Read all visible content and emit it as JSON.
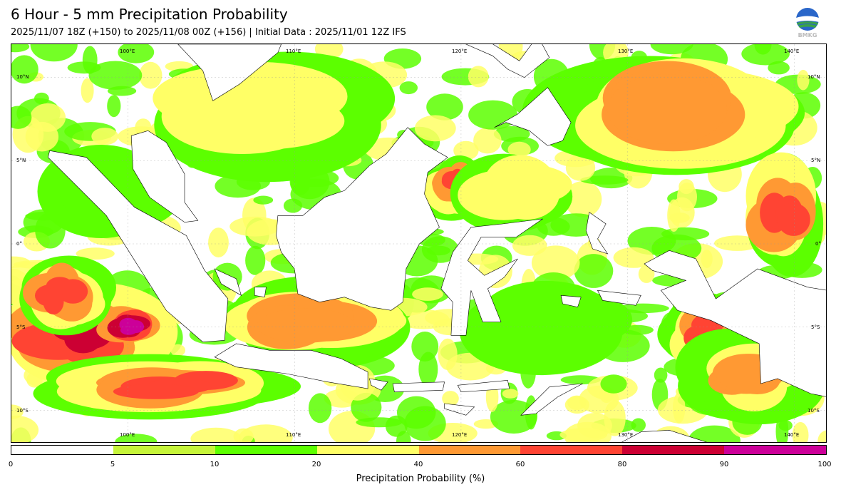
{
  "title": "6 Hour - 5 mm Precipitation Probability",
  "subtitle": "2025/11/07 18Z (+150) to 2025/11/08 00Z (+156) | Initial Data : 2025/11/01 12Z IFS",
  "logo_text": "BMKG",
  "map": {
    "lon_labels": [
      "100°E",
      "110°E",
      "120°E",
      "130°E",
      "140°E"
    ],
    "lat_labels_left": [
      "10°N",
      "5°N",
      "0°",
      "5°S",
      "10°S"
    ],
    "lat_labels_right": [
      "10°N",
      "5°N",
      "0°",
      "5°S",
      "10°S"
    ],
    "extent": {
      "lon_min": 93,
      "lon_max": 142,
      "lat_min": -12,
      "lat_max": 12
    },
    "regions": [
      {
        "name": "south-indian-ocean-band",
        "level": 80,
        "lon": 97,
        "lat": -5.5,
        "rx": 5,
        "ry": 3
      },
      {
        "name": "south-indian-ocean-core",
        "level": 90,
        "lon": 100,
        "lat": -5,
        "rx": 2,
        "ry": 1.2
      },
      {
        "name": "south-of-java-band",
        "level": 60,
        "lon": 103,
        "lat": -8.5,
        "rx": 8,
        "ry": 2
      },
      {
        "name": "west-sumatra-sea",
        "level": 60,
        "lon": 96,
        "lat": -3,
        "rx": 3,
        "ry": 2.5
      },
      {
        "name": "java-sea",
        "level": 40,
        "lon": 111,
        "lat": -4.5,
        "rx": 6,
        "ry": 2.5
      },
      {
        "name": "north-kalimantan",
        "level": 60,
        "lon": 119.5,
        "lat": 3.5,
        "rx": 2.2,
        "ry": 2
      },
      {
        "name": "philippine-sea",
        "level": 40,
        "lon": 133,
        "lat": 8,
        "rx": 9,
        "ry": 4
      },
      {
        "name": "pacific-east",
        "level": 60,
        "lon": 139.5,
        "lat": 2,
        "rx": 3,
        "ry": 4
      },
      {
        "name": "papua-south",
        "level": 60,
        "lon": 134.5,
        "lat": -5.5,
        "rx": 3,
        "ry": 2.5
      },
      {
        "name": "arafura-sea",
        "level": 40,
        "lon": 137,
        "lat": -8,
        "rx": 4,
        "ry": 2.5
      },
      {
        "name": "south-china-sea",
        "level": 20,
        "lon": 108,
        "lat": 8,
        "rx": 7,
        "ry": 3.5
      },
      {
        "name": "malacca-strait",
        "level": 10,
        "lon": 99,
        "lat": 3,
        "rx": 4,
        "ry": 3
      },
      {
        "name": "banda-sea",
        "level": 10,
        "lon": 125,
        "lat": -5,
        "rx": 5,
        "ry": 3
      },
      {
        "name": "celebes-sea",
        "level": 20,
        "lon": 123,
        "lat": 3,
        "rx": 4,
        "ry": 2.5
      }
    ]
  },
  "colorbar": {
    "levels": [
      "0",
      "5",
      "10",
      "20",
      "40",
      "60",
      "80",
      "90",
      "100"
    ],
    "colors": [
      "#ffffff",
      "#c6f53a",
      "#5cff00",
      "#ffff66",
      "#ff9933",
      "#ff4433",
      "#cc0033",
      "#cc0099"
    ],
    "title": "Precipitation Probability (%)"
  }
}
